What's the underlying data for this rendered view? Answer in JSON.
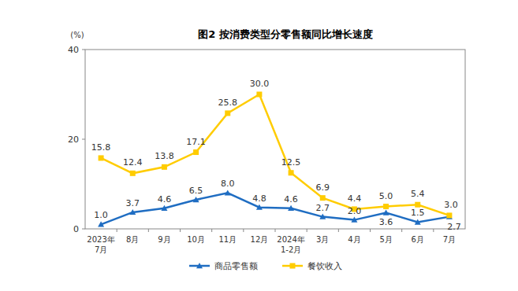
{
  "chart_data": {
    "type": "line",
    "title": "图2 按消费类型分零售额同比增长速度",
    "y_label": "(%)",
    "categories": [
      "2023年\n7月",
      "8月",
      "9月",
      "10月",
      "11月",
      "12月",
      "2024年\n1-2月",
      "3月",
      "4月",
      "5月",
      "6月",
      "7月"
    ],
    "series": [
      {
        "name": "商品零售额",
        "color": "#1f6dc2",
        "marker": "triangle",
        "line_style": "solid",
        "values": [
          1.0,
          3.7,
          4.6,
          6.5,
          8.0,
          4.8,
          4.6,
          2.7,
          2.0,
          3.6,
          1.5,
          2.7
        ],
        "value_labels": [
          "1.0",
          "3.7",
          "4.6",
          "6.5",
          "8.0",
          "4.8",
          "4.6",
          "2.7",
          "2.0",
          "3.6",
          "1.5",
          "2.7"
        ]
      },
      {
        "name": "餐饮收入",
        "color": "#ffcc00",
        "marker": "square",
        "line_style": "solid",
        "values": [
          15.8,
          12.4,
          13.8,
          17.1,
          25.8,
          30.0,
          12.5,
          6.9,
          4.4,
          5.0,
          5.4,
          3.0
        ],
        "value_labels": [
          "15.8",
          "12.4",
          "13.8",
          "17.1",
          "25.8",
          "30.0",
          "12.5",
          "6.9",
          "4.4",
          "5.0",
          "5.4",
          "3.0"
        ]
      }
    ],
    "ylim": [
      0,
      40
    ],
    "yticks": [
      0,
      20,
      40
    ],
    "grid": false,
    "legend": "bottom",
    "data_labels": true
  }
}
